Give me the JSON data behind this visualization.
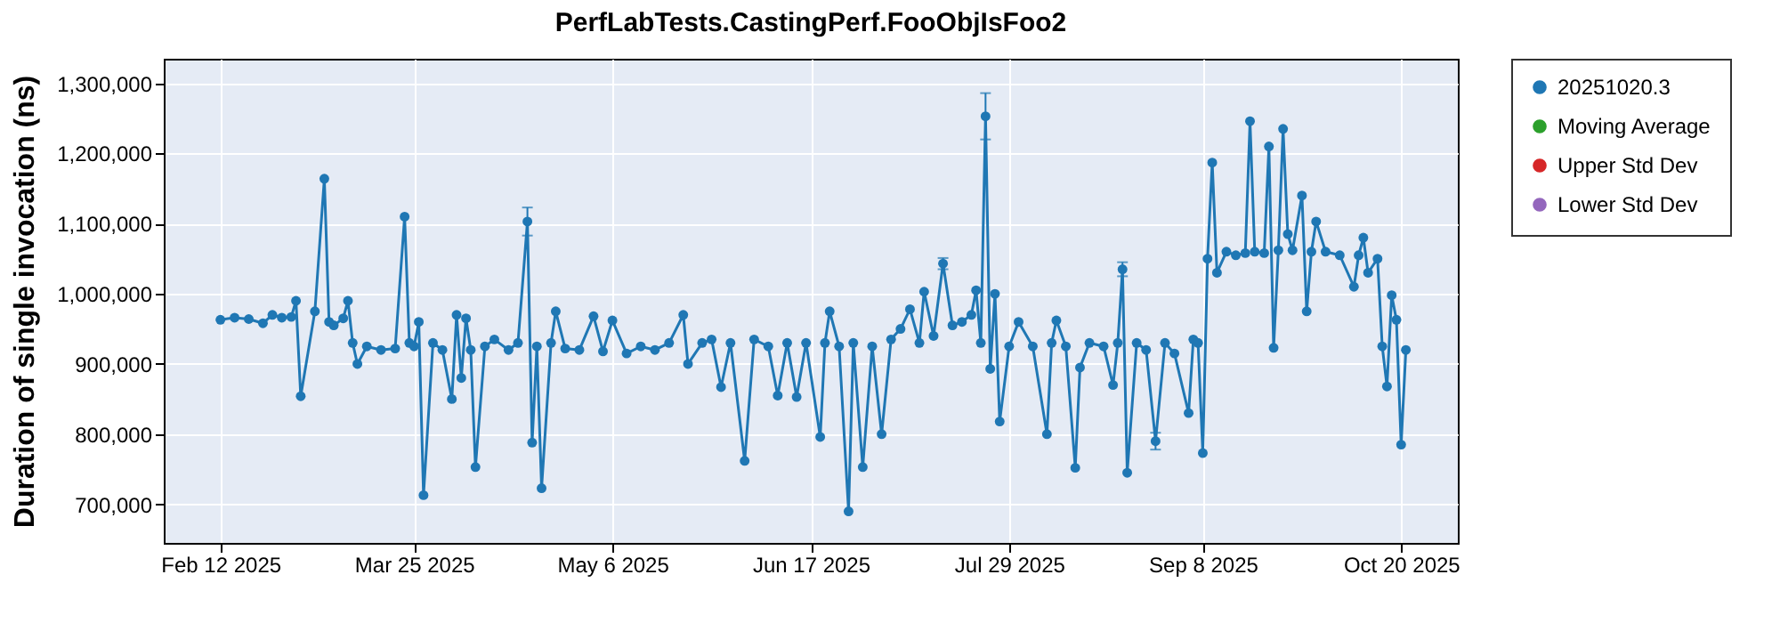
{
  "chart_data": {
    "type": "line",
    "title": "PerfLabTests.CastingPerf.FooObjIsFoo2",
    "ylabel": "Duration of single invocation (ns)",
    "x": [
      "2025-02-12",
      "2025-02-15",
      "2025-02-18",
      "2025-02-21",
      "2025-02-23",
      "2025-02-25",
      "2025-02-27",
      "2025-02-28",
      "2025-03-01",
      "2025-03-04",
      "2025-03-06",
      "2025-03-07",
      "2025-03-08",
      "2025-03-10",
      "2025-03-11",
      "2025-03-12",
      "2025-03-13",
      "2025-03-15",
      "2025-03-18",
      "2025-03-21",
      "2025-03-23",
      "2025-03-24",
      "2025-03-25",
      "2025-03-26",
      "2025-03-27",
      "2025-03-29",
      "2025-03-31",
      "2025-04-02",
      "2025-04-03",
      "2025-04-04",
      "2025-04-05",
      "2025-04-06",
      "2025-04-07",
      "2025-04-09",
      "2025-04-11",
      "2025-04-14",
      "2025-04-16",
      "2025-04-18",
      "2025-04-19",
      "2025-04-20",
      "2025-04-21",
      "2025-04-23",
      "2025-04-24",
      "2025-04-26",
      "2025-04-29",
      "2025-05-02",
      "2025-05-04",
      "2025-05-06",
      "2025-05-09",
      "2025-05-12",
      "2025-05-15",
      "2025-05-18",
      "2025-05-21",
      "2025-05-22",
      "2025-05-25",
      "2025-05-27",
      "2025-05-29",
      "2025-05-31",
      "2025-06-03",
      "2025-06-05",
      "2025-06-08",
      "2025-06-10",
      "2025-06-12",
      "2025-06-14",
      "2025-06-16",
      "2025-06-19",
      "2025-06-20",
      "2025-06-21",
      "2025-06-23",
      "2025-06-25",
      "2025-06-26",
      "2025-06-28",
      "2025-06-30",
      "2025-07-02",
      "2025-07-04",
      "2025-07-06",
      "2025-07-08",
      "2025-07-10",
      "2025-07-11",
      "2025-07-13",
      "2025-07-15",
      "2025-07-17",
      "2025-07-19",
      "2025-07-21",
      "2025-07-22",
      "2025-07-23",
      "2025-07-24",
      "2025-07-25",
      "2025-07-26",
      "2025-07-27",
      "2025-07-29",
      "2025-07-31",
      "2025-08-03",
      "2025-08-06",
      "2025-08-07",
      "2025-08-08",
      "2025-08-10",
      "2025-08-12",
      "2025-08-13",
      "2025-08-15",
      "2025-08-18",
      "2025-08-20",
      "2025-08-21",
      "2025-08-22",
      "2025-08-23",
      "2025-08-25",
      "2025-08-27",
      "2025-08-29",
      "2025-08-31",
      "2025-09-02",
      "2025-09-05",
      "2025-09-06",
      "2025-09-07",
      "2025-09-08",
      "2025-09-09",
      "2025-09-10",
      "2025-09-11",
      "2025-09-13",
      "2025-09-15",
      "2025-09-17",
      "2025-09-18",
      "2025-09-19",
      "2025-09-21",
      "2025-09-22",
      "2025-09-23",
      "2025-09-24",
      "2025-09-25",
      "2025-09-26",
      "2025-09-27",
      "2025-09-29",
      "2025-09-30",
      "2025-10-01",
      "2025-10-02",
      "2025-10-04",
      "2025-10-07",
      "2025-10-10",
      "2025-10-11",
      "2025-10-12",
      "2025-10-13",
      "2025-10-15",
      "2025-10-16",
      "2025-10-17",
      "2025-10-18",
      "2025-10-19",
      "2025-10-20",
      "2025-10-21"
    ],
    "series": [
      {
        "name": "20251020.3",
        "color": "#1f77b4",
        "values": [
          963000,
          966000,
          964000,
          958000,
          970000,
          966000,
          967000,
          990000,
          854000,
          975000,
          1164000,
          960000,
          955000,
          965000,
          990000,
          930000,
          900000,
          925000,
          920000,
          922000,
          1110000,
          930000,
          925000,
          960000,
          713000,
          930000,
          920000,
          850000,
          970000,
          880000,
          965000,
          920000,
          753000,
          925000,
          935000,
          920000,
          930000,
          1103000,
          788000,
          925000,
          723000,
          930000,
          975000,
          922000,
          920000,
          968000,
          918000,
          962000,
          915000,
          925000,
          920000,
          930000,
          970000,
          900000,
          930000,
          935000,
          867000,
          930000,
          762000,
          935000,
          925000,
          855000,
          930000,
          853000,
          930000,
          796000,
          930000,
          975000,
          925000,
          690000,
          930000,
          753000,
          925000,
          800000,
          935000,
          950000,
          978000,
          930000,
          1003000,
          940000,
          1043000,
          955000,
          960000,
          970000,
          1005000,
          930000,
          1253000,
          893000,
          1000000,
          818000,
          925000,
          960000,
          925000,
          800000,
          930000,
          962000,
          925000,
          752000,
          895000,
          930000,
          925000,
          870000,
          930000,
          1035000,
          745000,
          930000,
          920000,
          790000,
          930000,
          915000,
          830000,
          935000,
          930000,
          773000,
          1050000,
          1187000,
          1030000,
          1060000,
          1055000,
          1058000,
          1246000,
          1060000,
          1058000,
          1210000,
          923000,
          1062000,
          1235000,
          1085000,
          1062000,
          1140000,
          975000,
          1060000,
          1103000,
          1060000,
          1055000,
          1010000,
          1055000,
          1080000,
          1030000,
          1050000,
          925000,
          868000,
          998000,
          963000,
          785000,
          920000
        ],
        "errors": [
          null,
          null,
          null,
          null,
          null,
          null,
          null,
          null,
          null,
          null,
          null,
          null,
          null,
          null,
          null,
          null,
          null,
          null,
          null,
          null,
          null,
          null,
          null,
          null,
          null,
          null,
          null,
          null,
          null,
          null,
          null,
          null,
          null,
          null,
          null,
          null,
          null,
          20000,
          null,
          null,
          null,
          null,
          null,
          null,
          null,
          null,
          null,
          null,
          null,
          null,
          null,
          null,
          null,
          null,
          null,
          null,
          null,
          null,
          null,
          null,
          null,
          null,
          null,
          null,
          null,
          null,
          null,
          null,
          null,
          null,
          null,
          null,
          null,
          null,
          null,
          null,
          null,
          null,
          null,
          null,
          8000,
          null,
          null,
          null,
          null,
          null,
          33000,
          null,
          null,
          null,
          null,
          null,
          null,
          null,
          null,
          null,
          null,
          null,
          null,
          null,
          null,
          null,
          null,
          10000,
          null,
          null,
          null,
          12000,
          null,
          null,
          null,
          null,
          null,
          null,
          null,
          null,
          null,
          null,
          null,
          null,
          null,
          null,
          null,
          null,
          null,
          null,
          null,
          null,
          null,
          null,
          null,
          null,
          null,
          null,
          null,
          null,
          null,
          null,
          null,
          null,
          null,
          null,
          null,
          null,
          null,
          null
        ]
      },
      {
        "name": "Moving Average",
        "color": "#2ca02c",
        "values": [
          null,
          null,
          null,
          null,
          null,
          null,
          null,
          null,
          null,
          null,
          null,
          null,
          null,
          null,
          null,
          null,
          null,
          null,
          null,
          null,
          null,
          null,
          null,
          null,
          null,
          null,
          null,
          null,
          null,
          null,
          null,
          null,
          null,
          null,
          null,
          null,
          null,
          null,
          null,
          null,
          null,
          null,
          null,
          null,
          null,
          null,
          null,
          null,
          null,
          null,
          null,
          null,
          null,
          null,
          null,
          null,
          null,
          null,
          null,
          null,
          null,
          null,
          null,
          null,
          null,
          null,
          null,
          null,
          null,
          null,
          null,
          null,
          null,
          null,
          null,
          null,
          null,
          null,
          null,
          null,
          null,
          null,
          null,
          null,
          null,
          null,
          null,
          null,
          null,
          null,
          null,
          null,
          null,
          null,
          null,
          null,
          null,
          null,
          null,
          null,
          null,
          null,
          null,
          null,
          null,
          null,
          null,
          null,
          null,
          null,
          null,
          null,
          null,
          null,
          null,
          null,
          null,
          null,
          null,
          null,
          null,
          null,
          null,
          null,
          null,
          null,
          null,
          null,
          null,
          null,
          null,
          null,
          null,
          null,
          null,
          null,
          null,
          null,
          null,
          null,
          null,
          null,
          null,
          null,
          null,
          null
        ]
      },
      {
        "name": "Upper Std Dev",
        "color": "#d62728",
        "values": [
          null,
          null,
          null,
          null,
          null,
          null,
          null,
          null,
          null,
          null,
          null,
          null,
          null,
          null,
          null,
          null,
          null,
          null,
          null,
          null,
          null,
          null,
          null,
          null,
          null,
          null,
          null,
          null,
          null,
          null,
          null,
          null,
          null,
          null,
          null,
          null,
          null,
          null,
          null,
          null,
          null,
          null,
          null,
          null,
          null,
          null,
          null,
          null,
          null,
          null,
          null,
          null,
          null,
          null,
          null,
          null,
          null,
          null,
          null,
          null,
          null,
          null,
          null,
          null,
          null,
          null,
          null,
          null,
          null,
          null,
          null,
          null,
          null,
          null,
          null,
          null,
          null,
          null,
          null,
          null,
          null,
          null,
          null,
          null,
          null,
          null,
          null,
          null,
          null,
          null,
          null,
          null,
          null,
          null,
          null,
          null,
          null,
          null,
          null,
          null,
          null,
          null,
          null,
          null,
          null,
          null,
          null,
          null,
          null,
          null,
          null,
          null,
          null,
          null,
          null,
          null,
          null,
          null,
          null,
          null,
          null,
          null,
          null,
          null,
          null,
          null,
          null,
          null,
          null,
          null,
          null,
          null,
          null,
          null,
          null,
          null,
          null,
          null,
          null,
          null,
          null,
          null,
          null,
          null,
          null,
          null
        ]
      },
      {
        "name": "Lower Std Dev",
        "color": "#9467bd",
        "values": [
          null,
          null,
          null,
          null,
          null,
          null,
          null,
          null,
          null,
          null,
          null,
          null,
          null,
          null,
          null,
          null,
          null,
          null,
          null,
          null,
          null,
          null,
          null,
          null,
          null,
          null,
          null,
          null,
          null,
          null,
          null,
          null,
          null,
          null,
          null,
          null,
          null,
          null,
          null,
          null,
          null,
          null,
          null,
          null,
          null,
          null,
          null,
          null,
          null,
          null,
          null,
          null,
          null,
          null,
          null,
          null,
          null,
          null,
          null,
          null,
          null,
          null,
          null,
          null,
          null,
          null,
          null,
          null,
          null,
          null,
          null,
          null,
          null,
          null,
          null,
          null,
          null,
          null,
          null,
          null,
          null,
          null,
          null,
          null,
          null,
          null,
          null,
          null,
          null,
          null,
          null,
          null,
          null,
          null,
          null,
          null,
          null,
          null,
          null,
          null,
          null,
          null,
          null,
          null,
          null,
          null,
          null,
          null,
          null,
          null,
          null,
          null,
          null,
          null,
          null,
          null,
          null,
          null,
          null,
          null,
          null,
          null,
          null,
          null,
          null,
          null,
          null,
          null,
          null,
          null,
          null,
          null,
          null,
          null,
          null,
          null,
          null,
          null,
          null,
          null,
          null,
          null,
          null,
          null,
          null,
          null
        ]
      }
    ],
    "xlim": [
      "2025-01-31",
      "2025-11-01"
    ],
    "xticks": [
      {
        "value": "2025-02-12",
        "label": "Feb 12 2025"
      },
      {
        "value": "2025-03-25",
        "label": "Mar 25 2025"
      },
      {
        "value": "2025-05-06",
        "label": "May 6 2025"
      },
      {
        "value": "2025-06-17",
        "label": "Jun 17 2025"
      },
      {
        "value": "2025-07-29",
        "label": "Jul 29 2025"
      },
      {
        "value": "2025-09-08",
        "label": "Sep 8 2025"
      },
      {
        "value": "2025-10-20",
        "label": "Oct 20 2025"
      }
    ],
    "ylim": [
      645000,
      1335000
    ],
    "yticks": [
      {
        "value": 700000,
        "label": "700,000"
      },
      {
        "value": 800000,
        "label": "800,000"
      },
      {
        "value": 900000,
        "label": "900,000"
      },
      {
        "value": 1000000,
        "label": "1,000,000"
      },
      {
        "value": 1100000,
        "label": "1,100,000"
      },
      {
        "value": 1200000,
        "label": "1,200,000"
      },
      {
        "value": 1300000,
        "label": "1,300,000"
      }
    ],
    "grid": true,
    "legend": "right",
    "marker": "circle",
    "line_style": "solid"
  }
}
